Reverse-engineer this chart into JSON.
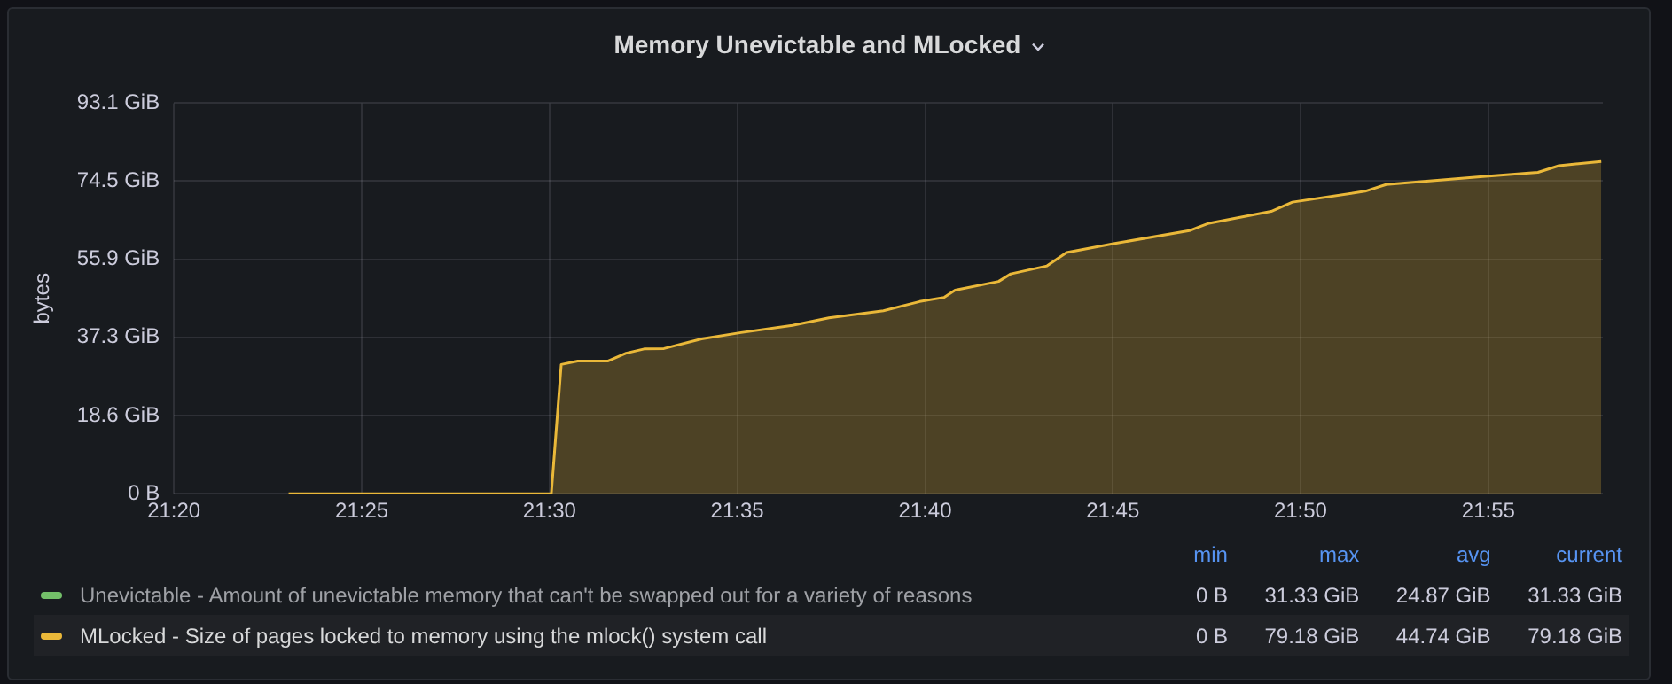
{
  "chart_data": {
    "type": "area",
    "title": "Memory Unevictable and MLocked",
    "ylabel": "bytes",
    "x": [
      21.3842,
      21.5008,
      21.5052,
      21.5125,
      21.5258,
      21.534,
      21.542,
      21.5508,
      21.5675,
      21.585,
      21.6078,
      21.624,
      21.6482,
      21.6643,
      21.6752,
      21.68,
      21.6993,
      21.7047,
      21.7208,
      21.7295,
      21.7503,
      21.784,
      21.7922,
      21.8203,
      21.8297,
      21.862,
      21.8713,
      21.9143,
      21.9387,
      21.948,
      21.9668
    ],
    "series": [
      {
        "name": "Unevictable - Amount of unevictable memory that can't be swapped out for a variety of reasons",
        "color": "#73bf69",
        "values": [
          null,
          null,
          null,
          null,
          null,
          null,
          null,
          null,
          null,
          null,
          null,
          null,
          null,
          null,
          null,
          null,
          null,
          null,
          null,
          null,
          null,
          null,
          null,
          null,
          null,
          null,
          null,
          null,
          null,
          null,
          null
        ]
      },
      {
        "name": "MLocked - Size of pages locked to memory using the mlock() system call",
        "color": "#eab839",
        "values": [
          0,
          0,
          30.8,
          31.6,
          31.6,
          33.5,
          34.5,
          34.6,
          36.9,
          38.4,
          40.1,
          41.9,
          43.6,
          45.8,
          46.8,
          48.5,
          50.6,
          52.4,
          54.3,
          57.5,
          59.6,
          62.7,
          64.4,
          67.3,
          69.5,
          72.1,
          73.7,
          75.6,
          76.6,
          78.2,
          79.18
        ]
      }
    ],
    "xlim": [
      21.3333,
      21.9675
    ],
    "xticks": [
      {
        "value": 21.3333,
        "label": "21:20"
      },
      {
        "value": 21.4167,
        "label": "21:25"
      },
      {
        "value": 21.5,
        "label": "21:30"
      },
      {
        "value": 21.5833,
        "label": "21:35"
      },
      {
        "value": 21.6667,
        "label": "21:40"
      },
      {
        "value": 21.75,
        "label": "21:45"
      },
      {
        "value": 21.8333,
        "label": "21:50"
      },
      {
        "value": 21.9167,
        "label": "21:55"
      }
    ],
    "ylim": [
      0,
      93.1
    ],
    "yticks": [
      {
        "value": 0,
        "label": "0 B"
      },
      {
        "value": 18.6,
        "label": "18.6 GiB"
      },
      {
        "value": 37.3,
        "label": "37.3 GiB"
      },
      {
        "value": 55.9,
        "label": "55.9 GiB"
      },
      {
        "value": 74.5,
        "label": "74.5 GiB"
      },
      {
        "value": 93.1,
        "label": "93.1 GiB"
      }
    ],
    "grid": true,
    "legend": "bottom",
    "marker": "none",
    "line_style": "solid",
    "annotations": [
      "min",
      "max",
      "avg",
      "current",
      "0 B",
      "31.33 GiB",
      "24.87 GiB",
      "31.33 GiB",
      "0 B",
      "79.18 GiB",
      "44.74 GiB",
      "79.18 GiB"
    ]
  }
}
